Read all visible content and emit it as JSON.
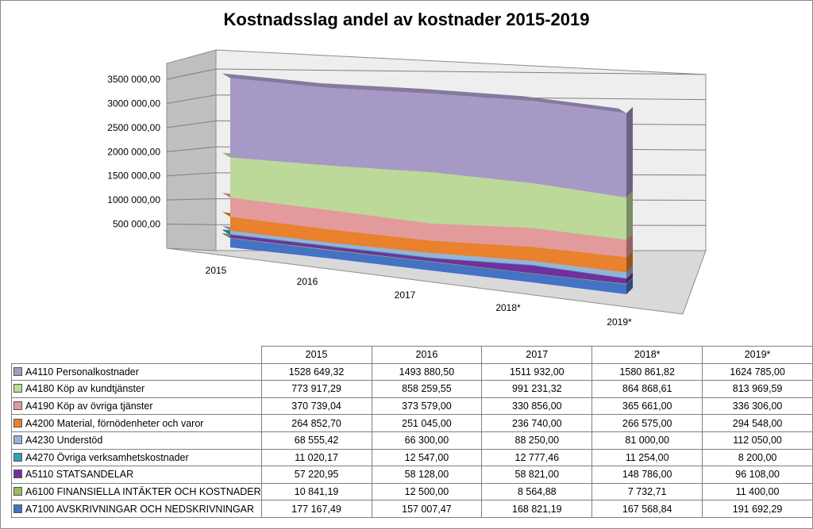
{
  "chart_data": {
    "type": "area",
    "title": "Kostnadsslag andel av kostnader 2015-2019",
    "categories": [
      "2015",
      "2016",
      "2017",
      "2018*",
      "2019*"
    ],
    "ylim": [
      0,
      3500000
    ],
    "yticks": [
      "500 000,00",
      "1000 000,00",
      "1500 000,00",
      "2000 000,00",
      "2500 000,00",
      "3000 000,00",
      "3500 000,00"
    ],
    "stacked": true,
    "three_d": true,
    "grid": true,
    "series": [
      {
        "name": "A7100  AVSKRIVNINGAR OCH NEDSKRIVNINGAR",
        "color": "#4472c4",
        "values": [
          177167.49,
          157007.47,
          168821.19,
          167568.84,
          191692.29
        ],
        "labels": [
          "177 167,49",
          "157 007,47",
          "168 821,19",
          "167 568,84",
          "191 692,29"
        ]
      },
      {
        "name": "A6100  FINANSIELLA INTÄKTER OCH KOSTNADER",
        "color": "#9bbb59",
        "values": [
          10841.19,
          12500.0,
          8564.88,
          7732.71,
          11400.0
        ],
        "labels": [
          "10 841,19",
          "12 500,00",
          "8 564,88",
          "7 732,71",
          "11 400,00"
        ]
      },
      {
        "name": "A5110  STATSANDELAR",
        "color": "#7030a0",
        "values": [
          57220.95,
          58128.0,
          58821.0,
          148786.0,
          96108.0
        ],
        "labels": [
          "57 220,95",
          "58 128,00",
          "58 821,00",
          "148 786,00",
          "96 108,00"
        ]
      },
      {
        "name": "A4270  Övriga verksamhetskostnader",
        "color": "#31a0b8",
        "values": [
          11020.17,
          12547.0,
          12777.46,
          11254.0,
          8200.0
        ],
        "labels": [
          "11 020,17",
          "12 547,00",
          "12 777,46",
          "11 254,00",
          "8 200,00"
        ]
      },
      {
        "name": "A4230  Understöd",
        "color": "#95b3d7",
        "values": [
          68555.42,
          66300.0,
          88250.0,
          81000.0,
          112050.0
        ],
        "labels": [
          "68 555,42",
          "66 300,00",
          "88 250,00",
          "81 000,00",
          "112 050,00"
        ]
      },
      {
        "name": "A4200  Material, förnödenheter och varor",
        "color": "#e9812d",
        "values": [
          264852.7,
          251045.0,
          236740.0,
          266575.0,
          294548.0
        ],
        "labels": [
          "264 852,70",
          "251 045,00",
          "236 740,00",
          "266 575,00",
          "294 548,00"
        ]
      },
      {
        "name": "A4190  Köp av övriga tjänster",
        "color": "#e39a9a",
        "values": [
          370739.04,
          373579.0,
          330856.0,
          365661.0,
          336306.0
        ],
        "labels": [
          "370 739,04",
          "373 579,00",
          "330 856,00",
          "365 661,00",
          "336 306,00"
        ]
      },
      {
        "name": "A4180  Köp av kundtjänster",
        "color": "#bcd99a",
        "values": [
          773917.29,
          858259.55,
          991231.32,
          864868.61,
          813969.59
        ],
        "labels": [
          "773 917,29",
          "858 259,55",
          "991 231,32",
          "864 868,61",
          "813 969,59"
        ]
      },
      {
        "name": "A4110  Personalkostnader",
        "color": "#a699c6",
        "values": [
          1528649.32,
          1493880.5,
          1511932.0,
          1580861.82,
          1624785.0
        ],
        "labels": [
          "1528 649,32",
          "1493 880,50",
          "1511 932,00",
          "1580 861,82",
          "1624 785,00"
        ]
      }
    ]
  }
}
